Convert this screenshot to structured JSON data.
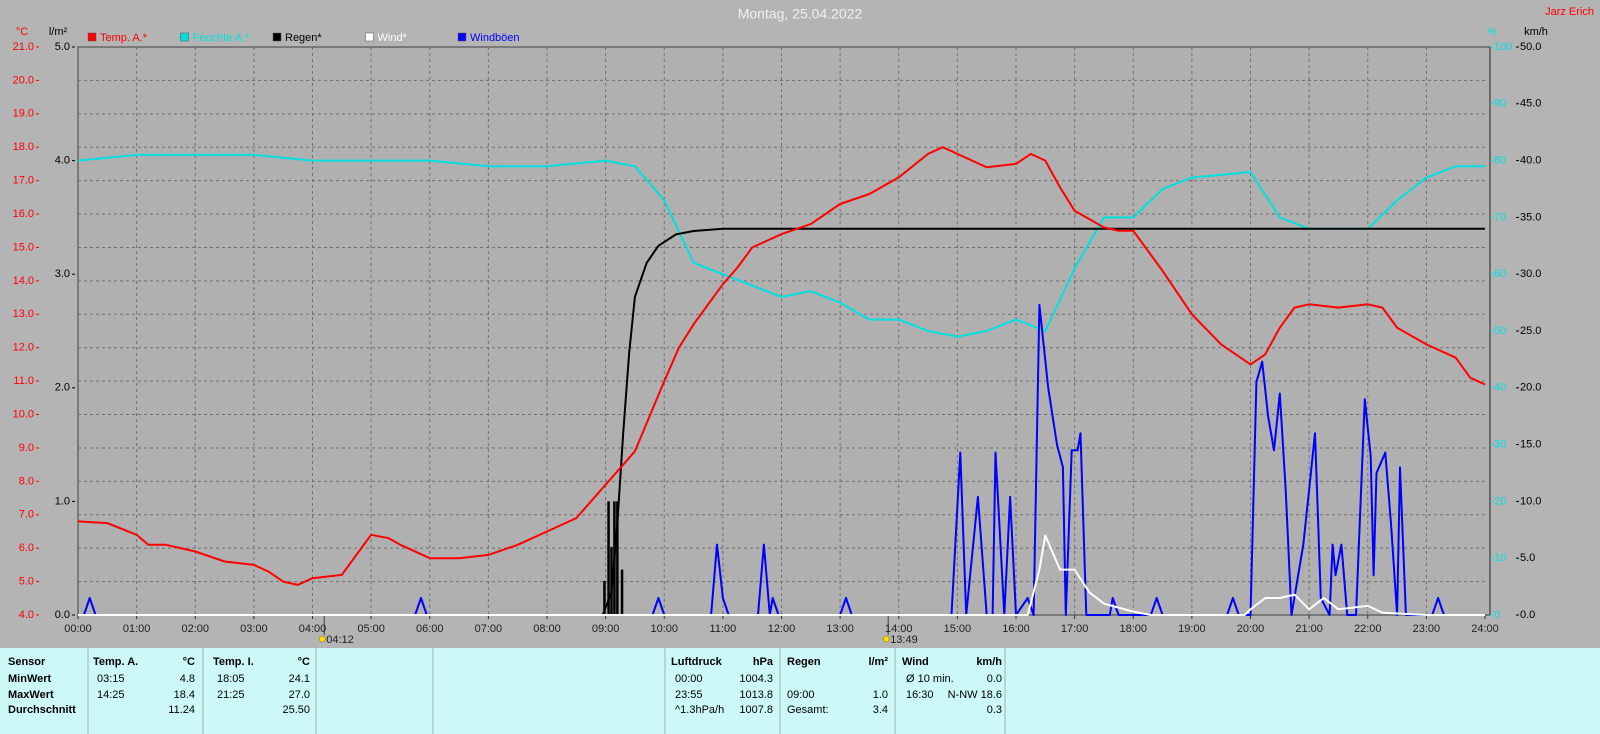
{
  "chart_data": {
    "type": "line",
    "title": "Montag, 25.04.2022",
    "author": "Jarz Erich",
    "xlim": [
      0,
      24
    ],
    "xticks": [
      {
        "value": 0,
        "label": "00:00"
      },
      {
        "value": 1,
        "label": "01:00"
      },
      {
        "value": 2,
        "label": "02:00"
      },
      {
        "value": 3,
        "label": "03:00"
      },
      {
        "value": 4,
        "label": "04:00"
      },
      {
        "value": 5,
        "label": "05:00"
      },
      {
        "value": 6,
        "label": "06:00"
      },
      {
        "value": 7,
        "label": "07:00"
      },
      {
        "value": 8,
        "label": "08:00"
      },
      {
        "value": 9,
        "label": "09:00"
      },
      {
        "value": 10,
        "label": "10:00"
      },
      {
        "value": 11,
        "label": "11:00"
      },
      {
        "value": 12,
        "label": "12:00"
      },
      {
        "value": 13,
        "label": "13:00"
      },
      {
        "value": 14,
        "label": "14:00"
      },
      {
        "value": 15,
        "label": "15:00"
      },
      {
        "value": 16,
        "label": "16:00"
      },
      {
        "value": 17,
        "label": "17:00"
      },
      {
        "value": 18,
        "label": "18:00"
      },
      {
        "value": 19,
        "label": "19:00"
      },
      {
        "value": 20,
        "label": "20:00"
      },
      {
        "value": 21,
        "label": "21:00"
      },
      {
        "value": 22,
        "label": "22:00"
      },
      {
        "value": 23,
        "label": "23:00"
      },
      {
        "value": 24,
        "label": "24:00"
      }
    ],
    "grid": true,
    "axes": {
      "temp": {
        "label": "°C",
        "color": "#ff0000",
        "ylim": [
          4,
          21
        ],
        "yticks": [
          {
            "value": 4,
            "label": "4.0"
          },
          {
            "value": 5,
            "label": "5.0"
          },
          {
            "value": 6,
            "label": "6.0"
          },
          {
            "value": 7,
            "label": "7.0"
          },
          {
            "value": 8,
            "label": "8.0"
          },
          {
            "value": 9,
            "label": "9.0"
          },
          {
            "value": 10,
            "label": "10.0"
          },
          {
            "value": 11,
            "label": "11.0"
          },
          {
            "value": 12,
            "label": "12.0"
          },
          {
            "value": 13,
            "label": "13.0"
          },
          {
            "value": 14,
            "label": "14.0"
          },
          {
            "value": 15,
            "label": "15.0"
          },
          {
            "value": 16,
            "label": "16.0"
          },
          {
            "value": 17,
            "label": "17.0"
          },
          {
            "value": 18,
            "label": "18.0"
          },
          {
            "value": 19,
            "label": "19.0"
          },
          {
            "value": 20,
            "label": "20.0"
          },
          {
            "value": 21,
            "label": "21.0"
          }
        ]
      },
      "rain": {
        "label": "l/m²",
        "color": "#000000",
        "ylim": [
          0,
          5
        ],
        "yticks": [
          {
            "value": 0,
            "label": "0.0"
          },
          {
            "value": 1,
            "label": "1.0"
          },
          {
            "value": 2,
            "label": "2.0"
          },
          {
            "value": 3,
            "label": "3.0"
          },
          {
            "value": 4,
            "label": "4.0"
          },
          {
            "value": 5,
            "label": "5.0"
          }
        ]
      },
      "hum": {
        "label": "%",
        "color": "#00e0e0",
        "ylim": [
          0,
          100
        ],
        "yticks": [
          0,
          10,
          20,
          30,
          40,
          50,
          60,
          70,
          80,
          90,
          100
        ]
      },
      "wind": {
        "label": "km/h",
        "color": "#000000",
        "ylim": [
          0,
          50
        ],
        "yticks": [
          {
            "value": 0,
            "label": "0.0"
          },
          {
            "value": 5,
            "label": "5.0"
          },
          {
            "value": 10,
            "label": "10.0"
          },
          {
            "value": 15,
            "label": "15.0"
          },
          {
            "value": 20,
            "label": "20.0"
          },
          {
            "value": 25,
            "label": "25.0"
          },
          {
            "value": 30,
            "label": "30.0"
          },
          {
            "value": 35,
            "label": "35.0"
          },
          {
            "value": 40,
            "label": "40.0"
          },
          {
            "value": 45,
            "label": "45.0"
          },
          {
            "value": 50,
            "label": "50.0"
          }
        ]
      }
    },
    "series": [
      {
        "name": "Temp. A.*",
        "color": "#ff0000",
        "axis": "temp",
        "x": [
          0,
          0.5,
          1,
          1.2,
          1.5,
          2,
          2.5,
          3,
          3.25,
          3.5,
          3.75,
          4,
          4.5,
          5,
          5.3,
          5.5,
          6,
          6.5,
          7,
          7.5,
          8,
          8.5,
          9,
          9.5,
          10,
          10.25,
          10.5,
          11,
          11.25,
          11.5,
          12,
          12.5,
          13,
          13.5,
          14,
          14.5,
          14.75,
          15,
          15.5,
          16,
          16.25,
          16.5,
          16.75,
          17,
          17.5,
          17.75,
          18,
          18.5,
          19,
          19.5,
          20,
          20.25,
          20.5,
          20.75,
          21,
          21.5,
          22,
          22.25,
          22.5,
          23,
          23.5,
          23.75,
          24
        ],
        "values": [
          6.8,
          6.75,
          6.4,
          6.1,
          6.1,
          5.9,
          5.6,
          5.5,
          5.3,
          5.0,
          4.9,
          5.1,
          5.2,
          6.4,
          6.3,
          6.1,
          5.7,
          5.7,
          5.8,
          6.1,
          6.5,
          6.9,
          7.9,
          8.9,
          11.0,
          12.0,
          12.7,
          13.9,
          14.4,
          15.0,
          15.4,
          15.7,
          16.3,
          16.6,
          17.1,
          17.8,
          18.0,
          17.8,
          17.4,
          17.5,
          17.8,
          17.6,
          16.8,
          16.1,
          15.6,
          15.5,
          15.5,
          14.3,
          13.0,
          12.1,
          11.5,
          11.8,
          12.6,
          13.2,
          13.3,
          13.2,
          13.3,
          13.2,
          12.6,
          12.1,
          11.7,
          11.1,
          10.9
        ]
      },
      {
        "name": "Feuchte A.*",
        "color": "#00e0e0",
        "axis": "hum",
        "x": [
          0,
          1,
          2,
          3,
          4,
          5,
          6,
          7,
          8,
          9,
          9.5,
          10,
          10.5,
          11,
          11.5,
          12,
          12.5,
          13,
          13.5,
          14,
          14.5,
          15,
          15.5,
          16,
          16.5,
          17,
          17.5,
          18,
          18.5,
          19,
          20,
          20.5,
          21,
          21.5,
          22,
          22.5,
          23,
          23.5,
          24
        ],
        "values": [
          80,
          81,
          81,
          81,
          80,
          80,
          80,
          79,
          79,
          80,
          79,
          73,
          62,
          60,
          58,
          56,
          57,
          55,
          52,
          52,
          50,
          49,
          50,
          52,
          50,
          61,
          70,
          70,
          75,
          77,
          78,
          70,
          68,
          68,
          68,
          73,
          77,
          79,
          79
        ]
      },
      {
        "name": "Regen*",
        "color": "#000000",
        "axis": "rain",
        "x": [
          0,
          8.95,
          9.1,
          9.2,
          9.3,
          9.4,
          9.5,
          9.7,
          9.9,
          10.2,
          10.5,
          11,
          24
        ],
        "values": [
          0,
          0,
          0.2,
          0.8,
          1.6,
          2.3,
          2.8,
          3.1,
          3.25,
          3.35,
          3.38,
          3.4,
          3.4
        ]
      },
      {
        "name": "Wind*",
        "color": "#ffffff",
        "axis": "wind",
        "x": [
          0,
          16.2,
          16.4,
          16.5,
          16.75,
          17,
          17.25,
          17.5,
          18,
          18.3,
          19.9,
          20,
          20.25,
          20.5,
          20.75,
          21,
          21.25,
          21.5,
          22,
          22.25,
          23,
          24
        ],
        "values": [
          0,
          0,
          4,
          7.0,
          4,
          4,
          2,
          1,
          0.3,
          0,
          0,
          0.5,
          1.5,
          1.5,
          1.8,
          0.5,
          1.5,
          0.5,
          0.8,
          0.2,
          0,
          0
        ]
      },
      {
        "name": "Windböen",
        "color": "#0000ff",
        "axis": "wind",
        "x": [
          0,
          0.1,
          0.2,
          0.3,
          5.75,
          5.85,
          5.95,
          9.8,
          9.9,
          10,
          10.8,
          10.9,
          11,
          11.1,
          11.6,
          11.7,
          11.8,
          11.85,
          11.95,
          13.0,
          13.1,
          13.2,
          14.9,
          15.05,
          15.15,
          15.35,
          15.5,
          15.6,
          15.65,
          15.8,
          15.9,
          16.0,
          16.2,
          16.3,
          16.4,
          16.55,
          16.7,
          16.8,
          16.85,
          16.95,
          17.05,
          17.1,
          17.2,
          17.6,
          17.65,
          17.75,
          18.3,
          18.4,
          18.5,
          19.6,
          19.7,
          19.8,
          20.0,
          20.1,
          20.2,
          20.3,
          20.4,
          20.5,
          20.6,
          20.7,
          20.9,
          21.0,
          21.1,
          21.2,
          21.35,
          21.4,
          21.45,
          21.55,
          21.65,
          21.8,
          21.95,
          22.05,
          22.1,
          22.15,
          22.3,
          22.4,
          22.5,
          22.55,
          22.65,
          23.1,
          23.2,
          23.3,
          24
        ],
        "values": [
          0,
          0,
          1.5,
          0,
          0,
          1.5,
          0,
          0,
          1.5,
          0,
          0,
          6.2,
          1.5,
          0,
          0,
          6.2,
          0,
          1.5,
          0,
          0,
          1.5,
          0,
          0,
          14.3,
          0,
          10.4,
          0,
          0,
          14.3,
          0,
          10.4,
          0,
          1.5,
          0,
          27.3,
          20,
          15,
          13,
          0,
          14.5,
          14.5,
          16,
          0,
          0,
          1.5,
          0,
          0,
          1.5,
          0,
          0,
          1.5,
          0,
          0,
          20.5,
          22.3,
          17.5,
          14.5,
          19.5,
          11,
          0,
          6.2,
          11,
          16,
          1.5,
          0,
          6.2,
          3.5,
          6.2,
          0,
          0,
          19,
          14,
          3.5,
          12.5,
          14.3,
          7.8,
          0,
          13,
          0,
          0,
          1.5,
          0,
          0
        ]
      }
    ],
    "rain_bars": {
      "color": "#000000",
      "axis": "rain",
      "x": [
        8.98,
        9.05,
        9.1,
        9.15,
        9.2,
        9.28
      ],
      "values": [
        0.3,
        1.0,
        0.6,
        1.0,
        1.0,
        0.4
      ]
    },
    "annotations": [
      {
        "x": 4.2,
        "label": "04:12"
      },
      {
        "x": 13.82,
        "label": "13:49"
      }
    ]
  },
  "table": {
    "blocks": [
      {
        "rows": [
          [
            "Sensor"
          ],
          [
            "MinWert"
          ],
          [
            "MaxWert"
          ],
          [
            "Durchschnitt"
          ]
        ]
      },
      {
        "rows": [
          [
            "Temp. A.",
            "°C"
          ],
          [
            "03:15",
            "4.8"
          ],
          [
            "14:25",
            "18.4"
          ],
          [
            null,
            "11.24"
          ]
        ]
      },
      {
        "rows": [
          [
            "Temp. I.",
            "°C"
          ],
          [
            "18:05",
            "24.1"
          ],
          [
            "21:25",
            "27.0"
          ],
          [
            null,
            "25.50"
          ]
        ]
      },
      {
        "rows": [
          [
            "Luftdruck",
            "hPa"
          ],
          [
            "00:00",
            "1004.3"
          ],
          [
            "23:55",
            "1013.8"
          ],
          [
            "^1.3hPa/h",
            "1007.8"
          ]
        ]
      },
      {
        "rows": [
          [
            "Regen",
            "l/m²"
          ],
          [
            null,
            null
          ],
          [
            "09:00",
            "1.0"
          ],
          [
            "Gesamt:",
            "3.4"
          ]
        ]
      },
      {
        "rows": [
          [
            "Wind",
            "km/h"
          ],
          [
            "Ø 10 min.",
            "0.0"
          ],
          [
            "16:30",
            "N-NW 18.6"
          ],
          [
            null,
            "0.3"
          ]
        ]
      }
    ]
  }
}
